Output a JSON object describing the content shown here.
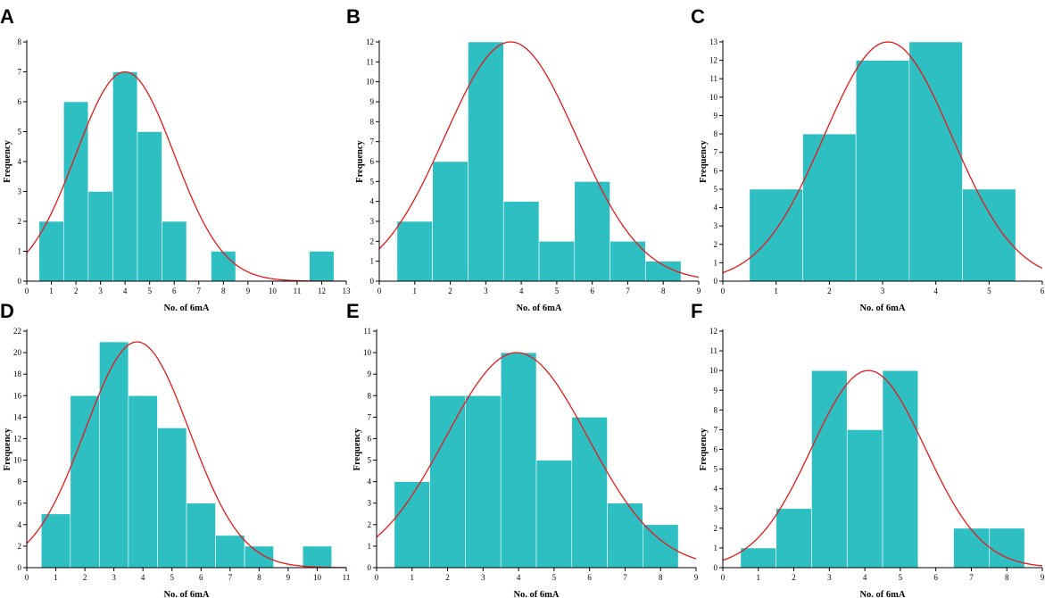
{
  "chart_data": [
    {
      "panel": "A",
      "type": "bar",
      "xlabel": "No. of 6mA",
      "ylabel": "Frequency",
      "xlim": [
        0,
        13
      ],
      "ylim": [
        0,
        8
      ],
      "xticks": [
        0,
        1,
        2,
        3,
        4,
        5,
        6,
        7,
        8,
        9,
        10,
        11,
        12,
        13
      ],
      "yticks": [
        0,
        1,
        2,
        3,
        4,
        5,
        6,
        7,
        8
      ],
      "bins": [
        1,
        2,
        3,
        4,
        5,
        6,
        8,
        12
      ],
      "values": [
        2,
        6,
        3,
        7,
        5,
        2,
        1,
        1
      ],
      "normal_curve": {
        "mean": 4.0,
        "sd": 2.0,
        "peak": 7
      },
      "curve_color": "#e41a1c",
      "bar_color": "#2ebfc3"
    },
    {
      "panel": "B",
      "type": "bar",
      "xlabel": "No. of 6mA",
      "ylabel": "Frequency",
      "xlim": [
        0,
        9
      ],
      "ylim": [
        0,
        12
      ],
      "xticks": [
        0,
        1,
        2,
        3,
        4,
        5,
        6,
        7,
        8,
        9
      ],
      "yticks": [
        0,
        1,
        2,
        3,
        4,
        5,
        6,
        7,
        8,
        9,
        10,
        11,
        12
      ],
      "bins": [
        1,
        2,
        3,
        4,
        5,
        6,
        7,
        8
      ],
      "values": [
        3,
        6,
        12,
        4,
        2,
        5,
        2,
        1
      ],
      "normal_curve": {
        "mean": 3.7,
        "sd": 1.85,
        "peak": 12
      },
      "curve_color": "#e41a1c",
      "bar_color": "#2ebfc3"
    },
    {
      "panel": "C",
      "type": "bar",
      "xlabel": "No. of 6mA",
      "ylabel": "Frequency",
      "xlim": [
        0,
        6
      ],
      "ylim": [
        0,
        13
      ],
      "xticks": [
        0,
        1,
        2,
        3,
        4,
        5,
        6
      ],
      "yticks": [
        0,
        1,
        2,
        3,
        4,
        5,
        6,
        7,
        8,
        9,
        10,
        11,
        12,
        13
      ],
      "bins": [
        1,
        2,
        3,
        4,
        5
      ],
      "values": [
        5,
        8,
        12,
        13,
        5
      ],
      "normal_curve": {
        "mean": 3.1,
        "sd": 1.2,
        "peak": 13
      },
      "curve_color": "#e41a1c",
      "bar_color": "#2ebfc3"
    },
    {
      "panel": "D",
      "type": "bar",
      "xlabel": "No. of 6mA",
      "ylabel": "Frequency",
      "xlim": [
        0,
        11
      ],
      "ylim": [
        0,
        22
      ],
      "xticks": [
        0,
        1,
        2,
        3,
        4,
        5,
        6,
        7,
        8,
        9,
        10,
        11
      ],
      "yticks": [
        0,
        2,
        4,
        6,
        8,
        10,
        12,
        14,
        16,
        18,
        20,
        22
      ],
      "bins": [
        1,
        2,
        3,
        4,
        5,
        6,
        7,
        8,
        10
      ],
      "values": [
        5,
        16,
        21,
        16,
        13,
        6,
        3,
        2,
        2
      ],
      "normal_curve": {
        "mean": 3.8,
        "sd": 1.8,
        "peak": 21
      },
      "curve_color": "#e41a1c",
      "bar_color": "#2ebfc3"
    },
    {
      "panel": "E",
      "type": "bar",
      "xlabel": "No. of 6mA",
      "ylabel": "Frequency",
      "xlim": [
        0,
        9
      ],
      "ylim": [
        0,
        11
      ],
      "xticks": [
        0,
        1,
        2,
        3,
        4,
        5,
        6,
        7,
        8,
        9
      ],
      "yticks": [
        0,
        1,
        2,
        3,
        4,
        5,
        6,
        7,
        8,
        9,
        10,
        11
      ],
      "bins": [
        1,
        2,
        3,
        4,
        5,
        6,
        7,
        8
      ],
      "values": [
        4,
        8,
        8,
        10,
        5,
        7,
        3,
        2
      ],
      "normal_curve": {
        "mean": 3.95,
        "sd": 2.0,
        "peak": 10
      },
      "curve_color": "#e41a1c",
      "bar_color": "#2ebfc3"
    },
    {
      "panel": "F",
      "type": "bar",
      "xlabel": "No. of 6mA",
      "ylabel": "Frequency",
      "xlim": [
        0,
        9
      ],
      "ylim": [
        0,
        12
      ],
      "xticks": [
        0,
        1,
        2,
        3,
        4,
        5,
        6,
        7,
        8,
        9
      ],
      "yticks": [
        0,
        1,
        2,
        3,
        4,
        5,
        6,
        7,
        8,
        9,
        10,
        11,
        12
      ],
      "bins": [
        1,
        2,
        3,
        4,
        5,
        7,
        8
      ],
      "values": [
        1,
        3,
        10,
        7,
        10,
        2,
        2
      ],
      "normal_curve": {
        "mean": 4.1,
        "sd": 1.6,
        "peak": 10
      },
      "curve_color": "#e41a1c",
      "bar_color": "#2ebfc3"
    }
  ]
}
